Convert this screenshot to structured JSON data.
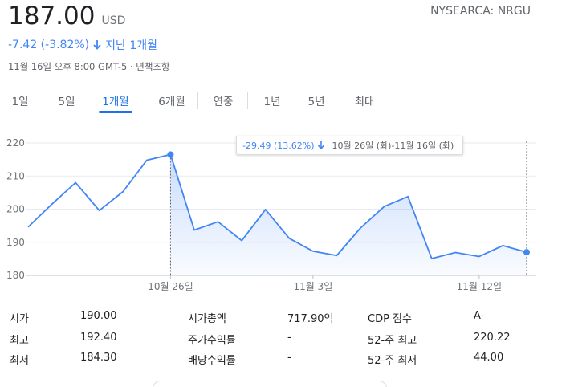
{
  "quote": {
    "price": "187.00",
    "currency": "USD",
    "ticker": "NYSEARCA: NRGU",
    "change": "-7.42 (-3.82%)",
    "period": "지난 1개월",
    "timestamp": "11월 16일 오후 8:00 GMT-5 · 면책조항"
  },
  "tabs": [
    "1일",
    "5일",
    "1개월",
    "6개월",
    "연중",
    "1년",
    "5년",
    "최대"
  ],
  "active_tab": "1개월",
  "tooltip": {
    "change": "-29.49 (13.62%)",
    "range": "10월 26일 (화)-11월 16일 (화)"
  },
  "colors": {
    "accent": "#1a73e8",
    "line": "#4285f4",
    "text_secondary": "#5f6368"
  },
  "chart_data": {
    "type": "area",
    "y_ticks": [
      "220",
      "210",
      "200",
      "190",
      "180"
    ],
    "ylim": [
      180,
      220
    ],
    "x_tick_labels": [
      "10월 26일",
      "11월 3일",
      "11월 12일"
    ],
    "x_tick_index": [
      6,
      12,
      19
    ],
    "highlight_range_index": [
      6,
      21
    ],
    "values": [
      194.6,
      201.5,
      208.0,
      199.6,
      205.3,
      214.8,
      216.5,
      193.7,
      196.2,
      190.5,
      199.9,
      191.2,
      187.3,
      186.0,
      194.3,
      200.8,
      203.8,
      185.1,
      186.9,
      185.7,
      189.0,
      187.0
    ]
  },
  "stats": [
    {
      "label": "시가",
      "value": "190.00"
    },
    {
      "label": "최고",
      "value": "192.40"
    },
    {
      "label": "최저",
      "value": "184.30"
    },
    {
      "label": "시가총액",
      "value": "717.90억"
    },
    {
      "label": "주가수익률",
      "value": "-"
    },
    {
      "label": "배당수익률",
      "value": "-"
    },
    {
      "label": "CDP 점수",
      "value": "A-"
    },
    {
      "label": "52-주 최고",
      "value": "220.22"
    },
    {
      "label": "52-주 최저",
      "value": "44.00"
    }
  ]
}
